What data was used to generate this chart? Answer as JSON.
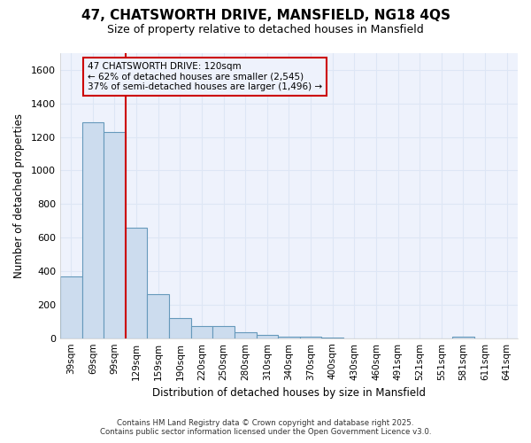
{
  "title_line1": "47, CHATSWORTH DRIVE, MANSFIELD, NG18 4QS",
  "title_line2": "Size of property relative to detached houses in Mansfield",
  "xlabel": "Distribution of detached houses by size in Mansfield",
  "ylabel": "Number of detached properties",
  "categories": [
    "39sqm",
    "69sqm",
    "99sqm",
    "129sqm",
    "159sqm",
    "190sqm",
    "220sqm",
    "250sqm",
    "280sqm",
    "310sqm",
    "340sqm",
    "370sqm",
    "400sqm",
    "430sqm",
    "460sqm",
    "491sqm",
    "521sqm",
    "551sqm",
    "581sqm",
    "611sqm",
    "641sqm"
  ],
  "values": [
    370,
    1290,
    1230,
    660,
    265,
    120,
    70,
    70,
    35,
    20,
    10,
    10,
    2,
    0,
    0,
    0,
    0,
    0,
    10,
    0,
    0
  ],
  "bar_color": "#ccdcee",
  "bar_edge_color": "#6699bb",
  "grid_color": "#dde6f5",
  "background_color": "#ffffff",
  "plot_bg_color": "#eef2fc",
  "annotation_box_text": "47 CHATSWORTH DRIVE: 120sqm\n← 62% of detached houses are smaller (2,545)\n37% of semi-detached houses are larger (1,496) →",
  "annotation_box_edge_color": "#cc0000",
  "red_line_index": 2.5,
  "ylim": [
    0,
    1700
  ],
  "yticks": [
    0,
    200,
    400,
    600,
    800,
    1000,
    1200,
    1400,
    1600
  ],
  "footer_line1": "Contains HM Land Registry data © Crown copyright and database right 2025.",
  "footer_line2": "Contains public sector information licensed under the Open Government Licence v3.0.",
  "bar_width": 1.0
}
